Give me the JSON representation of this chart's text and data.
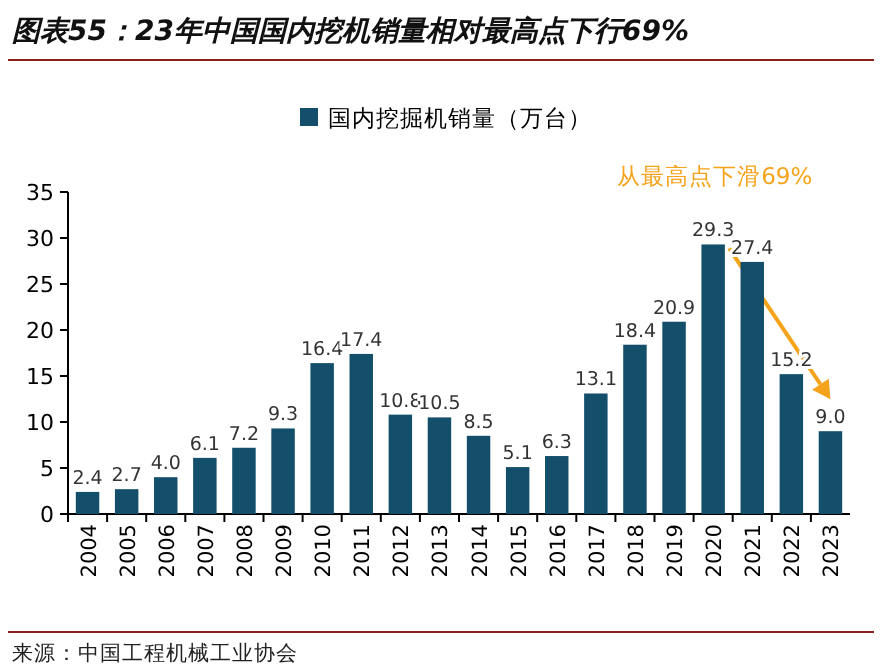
{
  "chart_data": {
    "type": "bar",
    "title": "图表55：23年中国国内挖机销量相对最高点下行69%",
    "categories": [
      "2004",
      "2005",
      "2006",
      "2007",
      "2008",
      "2009",
      "2010",
      "2011",
      "2012",
      "2013",
      "2014",
      "2015",
      "2016",
      "2017",
      "2018",
      "2019",
      "2020",
      "2021",
      "2022",
      "2023"
    ],
    "series": [
      {
        "name": "国内挖掘机销量（万台）",
        "color": "#134f6b",
        "values": [
          2.4,
          2.7,
          4.0,
          6.1,
          7.2,
          9.3,
          16.4,
          17.4,
          10.8,
          10.5,
          8.5,
          5.1,
          6.3,
          13.1,
          18.4,
          20.9,
          29.3,
          27.4,
          15.2,
          9.0
        ],
        "value_labels": [
          "2.4",
          "2.7",
          "4.0",
          "6.1",
          "7.2",
          "9.3",
          "16.4",
          "17.4",
          "10.8",
          "10.5",
          "8.5",
          "5.1",
          "6.3",
          "13.1",
          "18.4",
          "20.9",
          "29.3",
          "27.4",
          "15.2",
          "9.0"
        ]
      }
    ],
    "ylim": [
      0,
      35
    ],
    "yticks": [
      0,
      5,
      10,
      15,
      20,
      25,
      30,
      35
    ],
    "grid": false,
    "legend": "top",
    "annotations": [
      {
        "text": "从最高点下滑69%",
        "x": "2020",
        "y": 29.3
      },
      "来源：中国工程机械工业协会"
    ]
  }
}
